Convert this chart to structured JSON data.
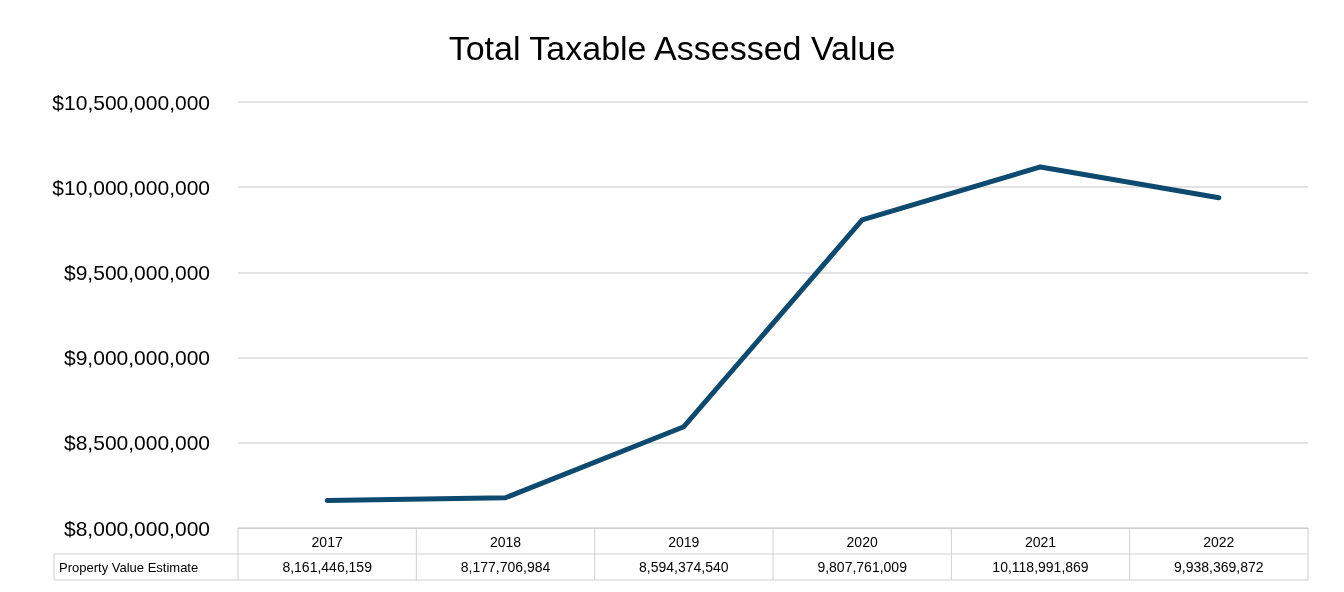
{
  "chart_data": {
    "type": "line",
    "title": "Total Taxable Assessed Value",
    "categories": [
      "2017",
      "2018",
      "2019",
      "2020",
      "2021",
      "2022"
    ],
    "series": [
      {
        "name": "Property Value Estimate",
        "color": "#0e4a6f",
        "values": [
          8161446159,
          8177706984,
          8594374540,
          9807761009,
          10118991869,
          9938369872
        ],
        "value_labels": [
          "8,161,446,159",
          "8,177,706,984",
          "8,594,374,540",
          "9,807,761,009",
          "10,118,991,869",
          "9,938,369,872"
        ]
      }
    ],
    "ylim": [
      8000000000,
      10500000000
    ],
    "yticks": [
      {
        "value": 8000000000,
        "label": "$8,000,000,000"
      },
      {
        "value": 8500000000,
        "label": "$8,500,000,000"
      },
      {
        "value": 9000000000,
        "label": "$9,000,000,000"
      },
      {
        "value": 9500000000,
        "label": "$9,500,000,000"
      },
      {
        "value": 10000000000,
        "label": "$10,000,000,000"
      },
      {
        "value": 10500000000,
        "label": "$10,500,000,000"
      }
    ],
    "grid": "y",
    "legend": false,
    "marker": "none",
    "line_style": "solid"
  }
}
